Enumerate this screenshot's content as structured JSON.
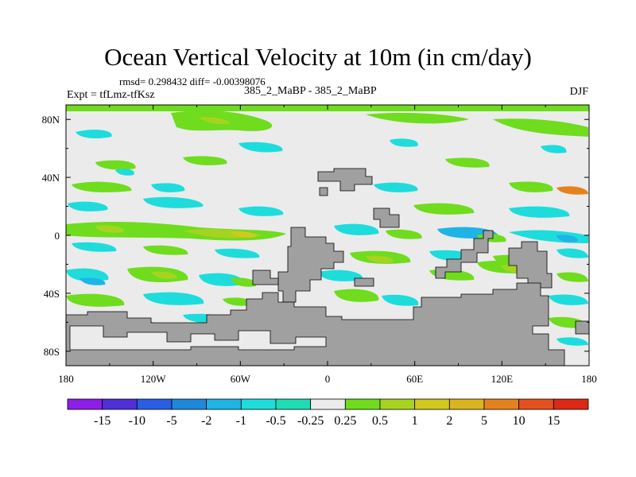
{
  "header": {
    "title": "Ocean Vertical Velocity at 10m (in cm/day)",
    "stats": "rmsd= 0.298432 diff= -0.00398076",
    "expt": "Expt = tfLmz-tfKsz",
    "runs": "385_2_MaBP - 385_2_MaBP",
    "season": "DJF"
  },
  "chart_data": {
    "type": "heatmap",
    "title": "Ocean Vertical Velocity at 10m (in cm/day)",
    "units": "cm/day",
    "x_ticks": [
      "180",
      "120W",
      "60W",
      "0",
      "60E",
      "120E",
      "180"
    ],
    "x_values": [
      -180,
      -120,
      -60,
      0,
      60,
      120,
      180
    ],
    "y_ticks": [
      "80N",
      "40N",
      "0",
      "40S",
      "80S"
    ],
    "y_values": [
      80,
      40,
      0,
      -40,
      -80
    ],
    "xlim": [
      -180,
      180
    ],
    "ylim": [
      -90,
      90
    ],
    "colorbar": {
      "labels": [
        "-15",
        "-10",
        "-5",
        "-2",
        "-1",
        "-0.5",
        "-0.25",
        "0.25",
        "0.5",
        "1",
        "2",
        "5",
        "10",
        "15"
      ],
      "colors": [
        "#8c1ee8",
        "#4f2fd8",
        "#2a5ee6",
        "#1e88dc",
        "#1eb4e6",
        "#1edcdc",
        "#1eddb4",
        "#ebebeb",
        "#6fdc1e",
        "#a6d41e",
        "#d2c81e",
        "#dcb41e",
        "#e6821e",
        "#e6501e",
        "#dc2814"
      ]
    },
    "land_color": "#a0a0a0"
  }
}
